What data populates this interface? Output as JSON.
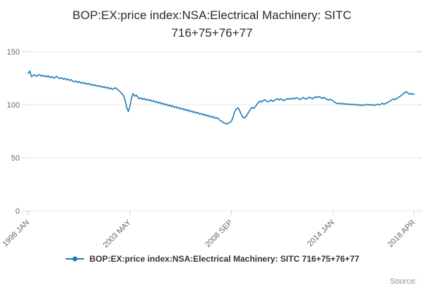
{
  "title": {
    "line1": "BOP:EX:price index:NSA:Electrical Machinery: SITC",
    "line2": "716+75+76+77"
  },
  "legend": {
    "label": "BOP:EX:price index:NSA:Electrical Machinery: SITC 716+75+76+77"
  },
  "footer": {
    "source": "Source:"
  },
  "chart_data": {
    "type": "line",
    "title": "BOP:EX:price index:NSA:Electrical Machinery: SITC 716+75+76+77",
    "series_name": "BOP:EX:price index:NSA:Electrical Machinery: SITC 716+75+76+77",
    "color": "#2079b6",
    "grid": true,
    "legend_position": "bottom",
    "frequency": "monthly",
    "x_start": "1998 JAN",
    "x_end": "2018 APR",
    "ylim": [
      0,
      150
    ],
    "y_ticks": [
      0,
      50,
      100,
      150
    ],
    "x_ticks": [
      {
        "label": "1998 JAN",
        "index": 0
      },
      {
        "label": "2003 MAY",
        "index": 64
      },
      {
        "label": "2008 SEP",
        "index": 128
      },
      {
        "label": "2014 JAN",
        "index": 192
      },
      {
        "label": "2018 APR",
        "index": 243
      }
    ],
    "values": [
      129.5,
      131.8,
      126.5,
      127.5,
      128.2,
      126.8,
      127.6,
      128.4,
      127.0,
      127.8,
      126.4,
      127.2,
      126.2,
      127.0,
      125.6,
      126.4,
      125.0,
      125.8,
      126.6,
      125.2,
      124.6,
      125.4,
      124.0,
      124.8,
      123.4,
      124.2,
      122.8,
      123.6,
      122.2,
      121.6,
      122.4,
      121.0,
      121.8,
      120.4,
      121.2,
      119.8,
      120.6,
      119.2,
      120.0,
      118.6,
      119.4,
      118.0,
      118.8,
      117.4,
      118.2,
      116.8,
      117.6,
      116.2,
      117.0,
      115.6,
      116.4,
      115.0,
      115.8,
      114.4,
      115.2,
      116.0,
      114.6,
      113.2,
      112.0,
      110.5,
      108.5,
      104.0,
      97.5,
      93.5,
      98.5,
      106.0,
      110.5,
      108.0,
      109.0,
      107.0,
      105.5,
      106.5,
      105.0,
      106.0,
      104.4,
      105.2,
      103.8,
      104.6,
      103.0,
      103.8,
      102.2,
      103.0,
      101.4,
      102.2,
      100.6,
      101.4,
      99.8,
      100.6,
      99.0,
      99.8,
      98.2,
      99.0,
      97.4,
      98.2,
      96.6,
      97.4,
      95.8,
      96.6,
      95.0,
      95.8,
      94.2,
      95.0,
      93.4,
      94.2,
      92.6,
      93.4,
      91.8,
      92.6,
      91.0,
      91.8,
      90.2,
      91.0,
      89.4,
      90.2,
      88.6,
      89.4,
      87.8,
      88.6,
      87.0,
      87.8,
      86.2,
      85.0,
      84.2,
      83.0,
      82.4,
      81.8,
      82.6,
      83.4,
      84.6,
      88.5,
      93.5,
      96.0,
      97.0,
      95.0,
      91.5,
      88.5,
      87.5,
      88.5,
      91.0,
      93.5,
      96.0,
      97.5,
      96.5,
      98.0,
      100.5,
      102.0,
      103.5,
      102.5,
      103.8,
      104.8,
      103.4,
      102.6,
      103.6,
      104.4,
      103.0,
      104.0,
      104.8,
      105.6,
      104.4,
      105.4,
      104.6,
      103.8,
      104.8,
      105.8,
      105.0,
      106.0,
      105.2,
      106.2,
      105.6,
      106.6,
      105.8,
      104.9,
      105.7,
      106.7,
      106.0,
      105.1,
      106.1,
      107.1,
      106.3,
      105.5,
      106.5,
      107.5,
      106.7,
      107.7,
      106.9,
      105.9,
      106.9,
      106.0,
      105.1,
      104.3,
      105.1,
      104.5,
      103.3,
      102.3,
      101.5,
      100.8,
      101.6,
      100.6,
      101.3,
      100.3,
      101.0,
      100.1,
      100.8,
      99.9,
      100.6,
      99.7,
      100.4,
      99.5,
      100.2,
      99.3,
      100.0,
      99.1,
      99.8,
      100.5,
      99.6,
      100.3,
      99.4,
      100.1,
      99.2,
      99.9,
      100.6,
      99.8,
      100.5,
      101.3,
      100.4,
      101.1,
      101.9,
      102.6,
      103.6,
      104.6,
      105.4,
      104.7,
      105.7,
      106.7,
      107.7,
      108.7,
      110.0,
      111.2,
      112.4,
      111.0,
      109.8,
      110.6,
      109.6,
      110.2
    ]
  }
}
